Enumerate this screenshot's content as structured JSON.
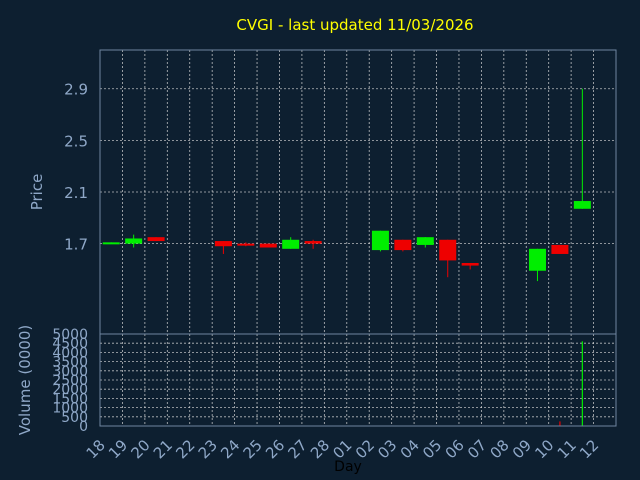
{
  "title": "CVGI - last updated 11/03/2026",
  "colors": {
    "background": "#0d1f30",
    "up": "#00ee00",
    "down": "#ee0000",
    "title": "#ffff00",
    "axis_text": "#8fa8c8",
    "grid": "#d8d8d8"
  },
  "chart_data": [
    {
      "type": "candlestick",
      "title": "CVGI - last updated 11/03/2026",
      "ylabel": "Price",
      "xlabel": "",
      "ylim": [
        1.0,
        3.2
      ],
      "yticks": [
        1.7,
        2.1,
        2.5,
        2.9
      ],
      "ytick_labels": [
        "1.7",
        "2.1",
        "2.5",
        "2.9"
      ],
      "grid": true,
      "categories": [
        "18",
        "19",
        "20",
        "21",
        "22",
        "23",
        "24",
        "25",
        "26",
        "27",
        "28",
        "01",
        "02",
        "03",
        "04",
        "05",
        "06",
        "07",
        "08",
        "09",
        "10",
        "11",
        "12"
      ],
      "candles": [
        {
          "day": "18",
          "open": 1.7,
          "close": 1.71,
          "high": 1.71,
          "low": 1.7
        },
        {
          "day": "19",
          "open": 1.7,
          "close": 1.74,
          "high": 1.77,
          "low": 1.67
        },
        {
          "day": "20",
          "open": 1.75,
          "close": 1.72,
          "high": 1.75,
          "low": 1.72
        },
        {
          "day": "23",
          "open": 1.72,
          "close": 1.68,
          "high": 1.72,
          "low": 1.62
        },
        {
          "day": "24",
          "open": 1.7,
          "close": 1.69,
          "high": 1.71,
          "low": 1.68
        },
        {
          "day": "25",
          "open": 1.7,
          "close": 1.67,
          "high": 1.7,
          "low": 1.67
        },
        {
          "day": "26",
          "open": 1.66,
          "close": 1.73,
          "high": 1.75,
          "low": 1.66
        },
        {
          "day": "27",
          "open": 1.72,
          "close": 1.7,
          "high": 1.73,
          "low": 1.66
        },
        {
          "day": "02",
          "open": 1.65,
          "close": 1.8,
          "high": 1.8,
          "low": 1.64
        },
        {
          "day": "03",
          "open": 1.73,
          "close": 1.65,
          "high": 1.73,
          "low": 1.64
        },
        {
          "day": "04",
          "open": 1.69,
          "close": 1.75,
          "high": 1.75,
          "low": 1.67
        },
        {
          "day": "05",
          "open": 1.73,
          "close": 1.57,
          "high": 1.73,
          "low": 1.44
        },
        {
          "day": "06",
          "open": 1.55,
          "close": 1.53,
          "high": 1.55,
          "low": 1.5
        },
        {
          "day": "09",
          "open": 1.49,
          "close": 1.66,
          "high": 1.66,
          "low": 1.41
        },
        {
          "day": "10",
          "open": 1.69,
          "close": 1.62,
          "high": 1.69,
          "low": 1.62
        },
        {
          "day": "11",
          "open": 1.97,
          "close": 2.03,
          "high": 2.9,
          "low": 1.97
        }
      ]
    },
    {
      "type": "bar",
      "ylabel": "Volume (0000)",
      "xlabel": "Day",
      "ylim": [
        0,
        5000
      ],
      "yticks": [
        0,
        500,
        1000,
        1500,
        2000,
        2500,
        3000,
        3500,
        4000,
        4500,
        5000
      ],
      "ytick_labels": [
        "0",
        "500",
        "1000",
        "1500",
        "2000",
        "2500",
        "3000",
        "3500",
        "4000",
        "4500",
        "5000"
      ],
      "grid": true,
      "categories": [
        "18",
        "19",
        "20",
        "21",
        "22",
        "23",
        "24",
        "25",
        "26",
        "27",
        "28",
        "01",
        "02",
        "03",
        "04",
        "05",
        "06",
        "07",
        "08",
        "09",
        "10",
        "11",
        "12"
      ],
      "bars": [
        {
          "day": "10",
          "value": 250,
          "direction": "down"
        },
        {
          "day": "11",
          "value": 4600,
          "direction": "up"
        }
      ]
    }
  ]
}
